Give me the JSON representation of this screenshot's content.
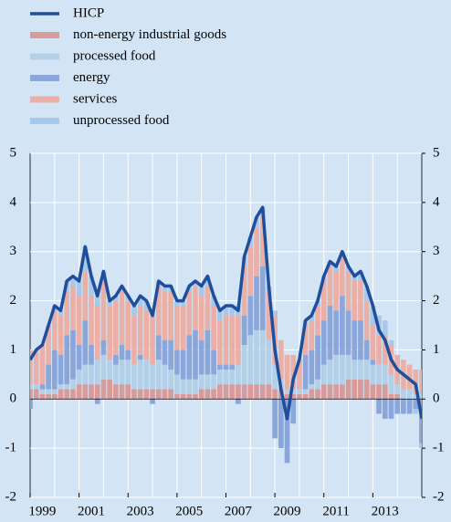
{
  "chart_data": {
    "type": "bar",
    "x": [
      1999.0,
      1999.25,
      1999.5,
      1999.75,
      2000.0,
      2000.25,
      2000.5,
      2000.75,
      2001.0,
      2001.25,
      2001.5,
      2001.75,
      2002.0,
      2002.25,
      2002.5,
      2002.75,
      2003.0,
      2003.25,
      2003.5,
      2003.75,
      2004.0,
      2004.25,
      2004.5,
      2004.75,
      2005.0,
      2005.25,
      2005.5,
      2005.75,
      2006.0,
      2006.25,
      2006.5,
      2006.75,
      2007.0,
      2007.25,
      2007.5,
      2007.75,
      2008.0,
      2008.25,
      2008.5,
      2008.75,
      2009.0,
      2009.25,
      2009.5,
      2009.75,
      2010.0,
      2010.25,
      2010.5,
      2010.75,
      2011.0,
      2011.25,
      2011.5,
      2011.75,
      2012.0,
      2012.25,
      2012.5,
      2012.75,
      2013.0,
      2013.25,
      2013.5,
      2013.75,
      2014.0,
      2014.25,
      2014.5,
      2014.75,
      2015.0
    ],
    "series": [
      {
        "name": "HICP",
        "color": "#1f4e9c",
        "kind": "line",
        "values": [
          0.8,
          1.0,
          1.1,
          1.5,
          1.9,
          1.8,
          2.4,
          2.5,
          2.4,
          3.1,
          2.5,
          2.1,
          2.6,
          2.0,
          2.1,
          2.3,
          2.1,
          1.9,
          2.1,
          2.0,
          1.7,
          2.4,
          2.3,
          2.3,
          2.0,
          2.0,
          2.3,
          2.4,
          2.3,
          2.5,
          2.1,
          1.8,
          1.9,
          1.9,
          1.8,
          2.9,
          3.3,
          3.7,
          3.9,
          2.3,
          1.0,
          0.2,
          -0.4,
          0.4,
          0.8,
          1.6,
          1.7,
          2.0,
          2.5,
          2.8,
          2.7,
          3.0,
          2.7,
          2.5,
          2.6,
          2.3,
          1.9,
          1.4,
          1.2,
          0.8,
          0.6,
          0.5,
          0.4,
          0.3,
          -0.4
        ]
      },
      {
        "name": "non-energy industrial goods",
        "color": "#d99a9a",
        "kind": "bar",
        "values": [
          0.2,
          0.2,
          0.1,
          0.1,
          0.1,
          0.2,
          0.2,
          0.2,
          0.3,
          0.3,
          0.3,
          0.3,
          0.4,
          0.4,
          0.3,
          0.3,
          0.3,
          0.2,
          0.2,
          0.2,
          0.2,
          0.2,
          0.2,
          0.2,
          0.1,
          0.1,
          0.1,
          0.1,
          0.2,
          0.2,
          0.2,
          0.3,
          0.3,
          0.3,
          0.3,
          0.3,
          0.3,
          0.3,
          0.3,
          0.3,
          0.2,
          0.2,
          0.1,
          0.1,
          0.1,
          0.1,
          0.2,
          0.2,
          0.3,
          0.3,
          0.3,
          0.3,
          0.4,
          0.4,
          0.4,
          0.4,
          0.3,
          0.3,
          0.3,
          0.1,
          0.1,
          0.0,
          0.0,
          0.0,
          -0.1
        ]
      },
      {
        "name": "processed food",
        "color": "#b4d0e8",
        "kind": "bar",
        "values": [
          0.1,
          0.1,
          0.1,
          0.1,
          0.1,
          0.1,
          0.1,
          0.2,
          0.3,
          0.4,
          0.4,
          0.5,
          0.5,
          0.4,
          0.4,
          0.5,
          0.5,
          0.5,
          0.6,
          0.6,
          0.5,
          0.6,
          0.5,
          0.4,
          0.4,
          0.3,
          0.3,
          0.3,
          0.3,
          0.3,
          0.3,
          0.3,
          0.3,
          0.3,
          0.4,
          0.8,
          1.0,
          1.1,
          1.1,
          0.9,
          0.5,
          0.2,
          0.1,
          0.1,
          0.1,
          0.1,
          0.1,
          0.2,
          0.4,
          0.5,
          0.6,
          0.6,
          0.5,
          0.4,
          0.4,
          0.4,
          0.4,
          0.4,
          0.4,
          0.4,
          0.2,
          0.2,
          0.2,
          0.1,
          0.1
        ]
      },
      {
        "name": "energy",
        "color": "#8aa6da",
        "kind": "bar",
        "values": [
          -0.2,
          0.0,
          0.1,
          0.5,
          0.8,
          0.6,
          1.0,
          1.0,
          0.5,
          0.9,
          0.4,
          -0.1,
          0.3,
          0.0,
          0.2,
          0.3,
          0.2,
          0.0,
          0.1,
          0.0,
          -0.1,
          0.5,
          0.5,
          0.6,
          0.5,
          0.6,
          0.9,
          1.0,
          0.7,
          0.9,
          0.5,
          0.1,
          0.1,
          0.1,
          -0.1,
          0.6,
          0.8,
          1.1,
          1.3,
          0.0,
          -0.8,
          -1.0,
          -1.3,
          -0.5,
          0.0,
          0.7,
          0.7,
          0.9,
          0.9,
          1.1,
          0.9,
          1.2,
          0.9,
          0.8,
          0.8,
          0.4,
          0.1,
          -0.3,
          -0.4,
          -0.4,
          -0.3,
          -0.3,
          -0.3,
          -0.2,
          -0.8
        ]
      },
      {
        "name": "services",
        "color": "#eab0a8",
        "kind": "bar",
        "values": [
          0.7,
          0.7,
          0.8,
          0.8,
          0.8,
          0.8,
          0.9,
          0.9,
          1.0,
          1.0,
          1.0,
          1.1,
          1.2,
          1.1,
          1.1,
          1.1,
          1.0,
          1.0,
          1.0,
          1.0,
          1.0,
          1.0,
          1.0,
          1.0,
          0.9,
          0.9,
          0.9,
          0.9,
          0.9,
          0.9,
          0.9,
          0.9,
          1.0,
          1.0,
          1.0,
          1.0,
          1.0,
          1.0,
          1.0,
          1.0,
          1.0,
          0.8,
          0.7,
          0.7,
          0.6,
          0.6,
          0.6,
          0.6,
          0.8,
          0.8,
          0.8,
          0.8,
          0.8,
          0.8,
          0.8,
          0.8,
          0.7,
          0.6,
          0.6,
          0.6,
          0.6,
          0.6,
          0.5,
          0.5,
          0.5
        ]
      },
      {
        "name": "unprocessed food",
        "color": "#a6c8ea",
        "kind": "bar",
        "values": [
          0.0,
          0.0,
          0.0,
          0.0,
          0.1,
          0.1,
          0.2,
          0.2,
          0.3,
          0.5,
          0.4,
          0.3,
          0.2,
          0.1,
          0.1,
          0.1,
          0.1,
          0.2,
          0.2,
          0.2,
          0.1,
          0.1,
          0.1,
          0.1,
          0.1,
          0.1,
          0.1,
          0.1,
          0.2,
          0.2,
          0.2,
          0.2,
          0.2,
          0.2,
          0.2,
          0.2,
          0.2,
          0.2,
          0.2,
          0.1,
          0.1,
          0.0,
          0.0,
          0.0,
          0.0,
          0.1,
          0.1,
          0.1,
          0.1,
          0.1,
          0.1,
          0.1,
          0.1,
          0.1,
          0.2,
          0.3,
          0.4,
          0.4,
          0.3,
          0.1,
          0.0,
          0.0,
          0.0,
          -0.1,
          -0.1
        ]
      }
    ],
    "xlim": [
      1999,
      2015
    ],
    "xticks": [
      1999,
      2001,
      2003,
      2005,
      2007,
      2009,
      2011,
      2013
    ],
    "xgrid": [
      2000,
      2001,
      2002,
      2003,
      2004,
      2005,
      2006,
      2007,
      2008,
      2009,
      2010,
      2011,
      2012,
      2013,
      2014
    ],
    "ylim": [
      -2,
      5
    ],
    "yticks": [
      -2,
      -1,
      0,
      1,
      2,
      3,
      4,
      5
    ],
    "y2lim": [
      -2,
      5
    ],
    "y2ticks": [
      -2,
      -1,
      0,
      1,
      2,
      3,
      4,
      5
    ],
    "grid": true
  }
}
